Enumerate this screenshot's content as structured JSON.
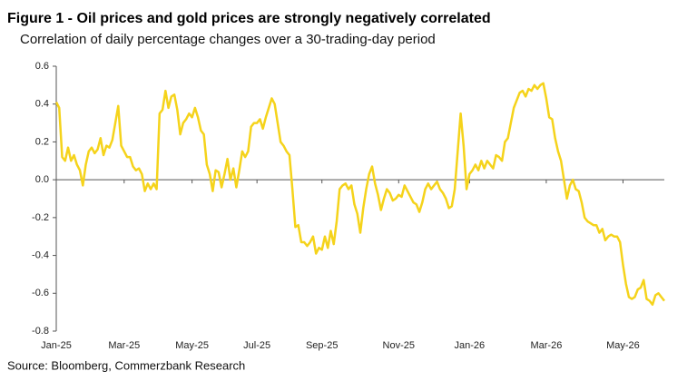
{
  "chart_data": {
    "type": "line",
    "title": "Figure 1 - Oil prices and gold prices are strongly negatively correlated",
    "subtitle": "Correlation of daily percentage changes over a 30-trading-day period",
    "source": "Source: Bloomberg, Commerzbank Research",
    "categories": [
      "Jan-25",
      null,
      null,
      null,
      null,
      null,
      null,
      null,
      null,
      null,
      null,
      null,
      null,
      null,
      null,
      null,
      null,
      null,
      null,
      null,
      null,
      null,
      null,
      "Mar-25",
      null,
      null,
      null,
      null,
      null,
      null,
      null,
      null,
      null,
      null,
      null,
      null,
      null,
      null,
      null,
      null,
      null,
      null,
      null,
      null,
      null,
      null,
      "May-25",
      null,
      null,
      null,
      null,
      null,
      null,
      null,
      null,
      null,
      null,
      null,
      null,
      null,
      null,
      null,
      null,
      null,
      null,
      null,
      null,
      null,
      "Jul-25",
      null,
      null,
      null,
      null,
      null,
      null,
      null,
      null,
      null,
      null,
      null,
      null,
      null,
      null,
      null,
      null,
      null,
      null,
      null,
      null,
      null,
      "Sep-25",
      null,
      null,
      null,
      null,
      null,
      null,
      null,
      null,
      null,
      null,
      null,
      null,
      null,
      null,
      null,
      null,
      null,
      null,
      null,
      null,
      null,
      null,
      null,
      null,
      null,
      "Nov-25",
      null,
      null,
      null,
      null,
      null,
      null,
      null,
      null,
      null,
      null,
      null,
      null,
      null,
      null,
      null,
      null,
      null,
      null,
      null,
      null,
      null,
      null,
      null,
      "Jan-26",
      null,
      null,
      null,
      null,
      null,
      null,
      null,
      null,
      null,
      null,
      null,
      null,
      null,
      null,
      null,
      null,
      null,
      null,
      null,
      null,
      null,
      null,
      null,
      null,
      null,
      "Mar-26",
      null,
      null,
      null,
      null,
      null,
      null,
      null,
      null,
      null,
      null,
      null,
      null,
      null,
      null,
      null,
      null,
      null,
      null,
      null,
      null,
      null,
      null,
      null,
      null,
      null,
      "May-26",
      null,
      null,
      null,
      null,
      null,
      null,
      null,
      null,
      null,
      null,
      null,
      null,
      null,
      null
    ],
    "series": [
      {
        "color": "#f5d31b",
        "values": [
          0.41,
          0.38,
          0.12,
          0.1,
          0.17,
          0.1,
          0.13,
          0.08,
          0.05,
          -0.03,
          0.08,
          0.15,
          0.17,
          0.14,
          0.16,
          0.22,
          0.13,
          0.18,
          0.17,
          0.21,
          0.3,
          0.39,
          0.18,
          0.15,
          0.12,
          0.12,
          0.07,
          0.05,
          0.06,
          0.03,
          -0.06,
          -0.02,
          -0.05,
          -0.02,
          -0.05,
          0.35,
          0.37,
          0.47,
          0.38,
          0.44,
          0.45,
          0.37,
          0.24,
          0.3,
          0.32,
          0.35,
          0.33,
          0.38,
          0.33,
          0.26,
          0.24,
          0.08,
          0.03,
          -0.06,
          0.05,
          0.04,
          -0.04,
          0.03,
          0.11,
          0.0,
          0.06,
          -0.04,
          0.05,
          0.15,
          0.12,
          0.15,
          0.28,
          0.3,
          0.3,
          0.32,
          0.27,
          0.33,
          0.38,
          0.43,
          0.4,
          0.3,
          0.2,
          0.18,
          0.15,
          0.13,
          -0.05,
          -0.25,
          -0.24,
          -0.33,
          -0.33,
          -0.35,
          -0.33,
          -0.3,
          -0.39,
          -0.36,
          -0.37,
          -0.3,
          -0.36,
          -0.27,
          -0.34,
          -0.22,
          -0.05,
          -0.03,
          -0.02,
          -0.05,
          -0.03,
          -0.13,
          -0.18,
          -0.28,
          -0.15,
          -0.05,
          0.03,
          0.07,
          -0.02,
          -0.08,
          -0.16,
          -0.1,
          -0.05,
          -0.07,
          -0.11,
          -0.1,
          -0.08,
          -0.09,
          -0.03,
          -0.06,
          -0.09,
          -0.12,
          -0.13,
          -0.17,
          -0.12,
          -0.05,
          -0.02,
          -0.05,
          -0.03,
          -0.01,
          -0.05,
          -0.07,
          -0.1,
          -0.15,
          -0.14,
          -0.05,
          0.15,
          0.35,
          0.18,
          -0.05,
          0.03,
          0.05,
          0.08,
          0.05,
          0.1,
          0.06,
          0.1,
          0.08,
          0.06,
          0.13,
          0.12,
          0.1,
          0.2,
          0.22,
          0.3,
          0.38,
          0.42,
          0.46,
          0.47,
          0.44,
          0.48,
          0.47,
          0.5,
          0.48,
          0.5,
          0.51,
          0.43,
          0.33,
          0.32,
          0.22,
          0.15,
          0.1,
          0.0,
          -0.1,
          -0.03,
          0.0,
          -0.05,
          -0.06,
          -0.12,
          -0.2,
          -0.22,
          -0.23,
          -0.24,
          -0.24,
          -0.28,
          -0.26,
          -0.32,
          -0.3,
          -0.29,
          -0.3,
          -0.3,
          -0.33,
          -0.45,
          -0.55,
          -0.62,
          -0.63,
          -0.62,
          -0.58,
          -0.57,
          -0.53,
          -0.63,
          -0.64,
          -0.66,
          -0.61,
          -0.6,
          -0.62,
          -0.64
        ]
      }
    ],
    "ylim": [
      -0.8,
      0.6
    ],
    "yticks": [
      {
        "value": -0.8,
        "label": "-0.8"
      },
      -0.6,
      -0.4,
      -0.2,
      {
        "value": 0,
        "label": "0.0"
      },
      0.2,
      0.4,
      0.6
    ]
  }
}
